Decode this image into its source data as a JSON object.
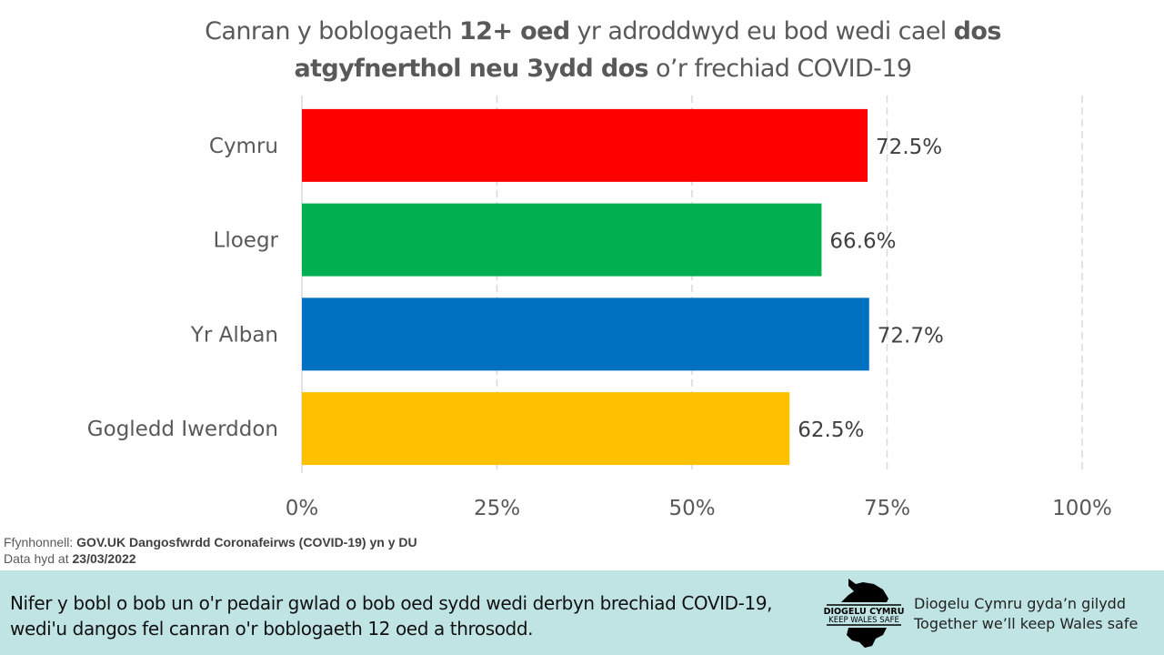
{
  "chart_data": {
    "type": "bar",
    "orientation": "horizontal",
    "title_parts": [
      {
        "text": "Canran y boblogaeth ",
        "bold": false
      },
      {
        "text": "12+ oed",
        "bold": true
      },
      {
        "text": " yr adroddwyd eu bod wedi cael ",
        "bold": false
      },
      {
        "text": "dos",
        "bold": true
      },
      {
        "text": "atgyfnerthol neu 3ydd dos",
        "bold": true
      },
      {
        "text": " o’r frechiad COVID-19",
        "bold": false
      }
    ],
    "categories": [
      "Cymru",
      "Lloegr",
      "Yr Alban",
      "Gogledd Iwerddon"
    ],
    "values": [
      72.5,
      66.6,
      72.7,
      62.5
    ],
    "data_labels": [
      "72.5%",
      "66.6%",
      "72.7%",
      "62.5%"
    ],
    "colors": [
      "#ff0000",
      "#00b050",
      "#0070c0",
      "#ffc000"
    ],
    "xlim": [
      0,
      100
    ],
    "xticks": [
      0,
      25,
      50,
      75,
      100
    ],
    "xtick_labels": [
      "0%",
      "25%",
      "50%",
      "75%",
      "100%"
    ],
    "grid": "vertical dashed"
  },
  "source": {
    "label": "Ffynhonnell:",
    "value": "GOV.UK Dangosfwrdd Coronafeirws (COVID-19) yn y DU",
    "date_label": "Data hyd at",
    "date_value": "23/03/2022"
  },
  "footer": {
    "line1": "Nifer y bobl o bob un o'r pedair gwlad o bob oed sydd wedi derbyn brechiad COVID-19,",
    "line2": "wedi'u dangos fel canran o'r boblogaeth 12 oed a throsodd.",
    "logo_text_1": "DIOGELU CYMRU",
    "logo_text_2": "KEEP WALES SAFE",
    "tagline_1": "Diogelu Cymru gyda’n gilydd",
    "tagline_2": "Together we’ll keep Wales safe",
    "background": "#c0e4e3"
  }
}
